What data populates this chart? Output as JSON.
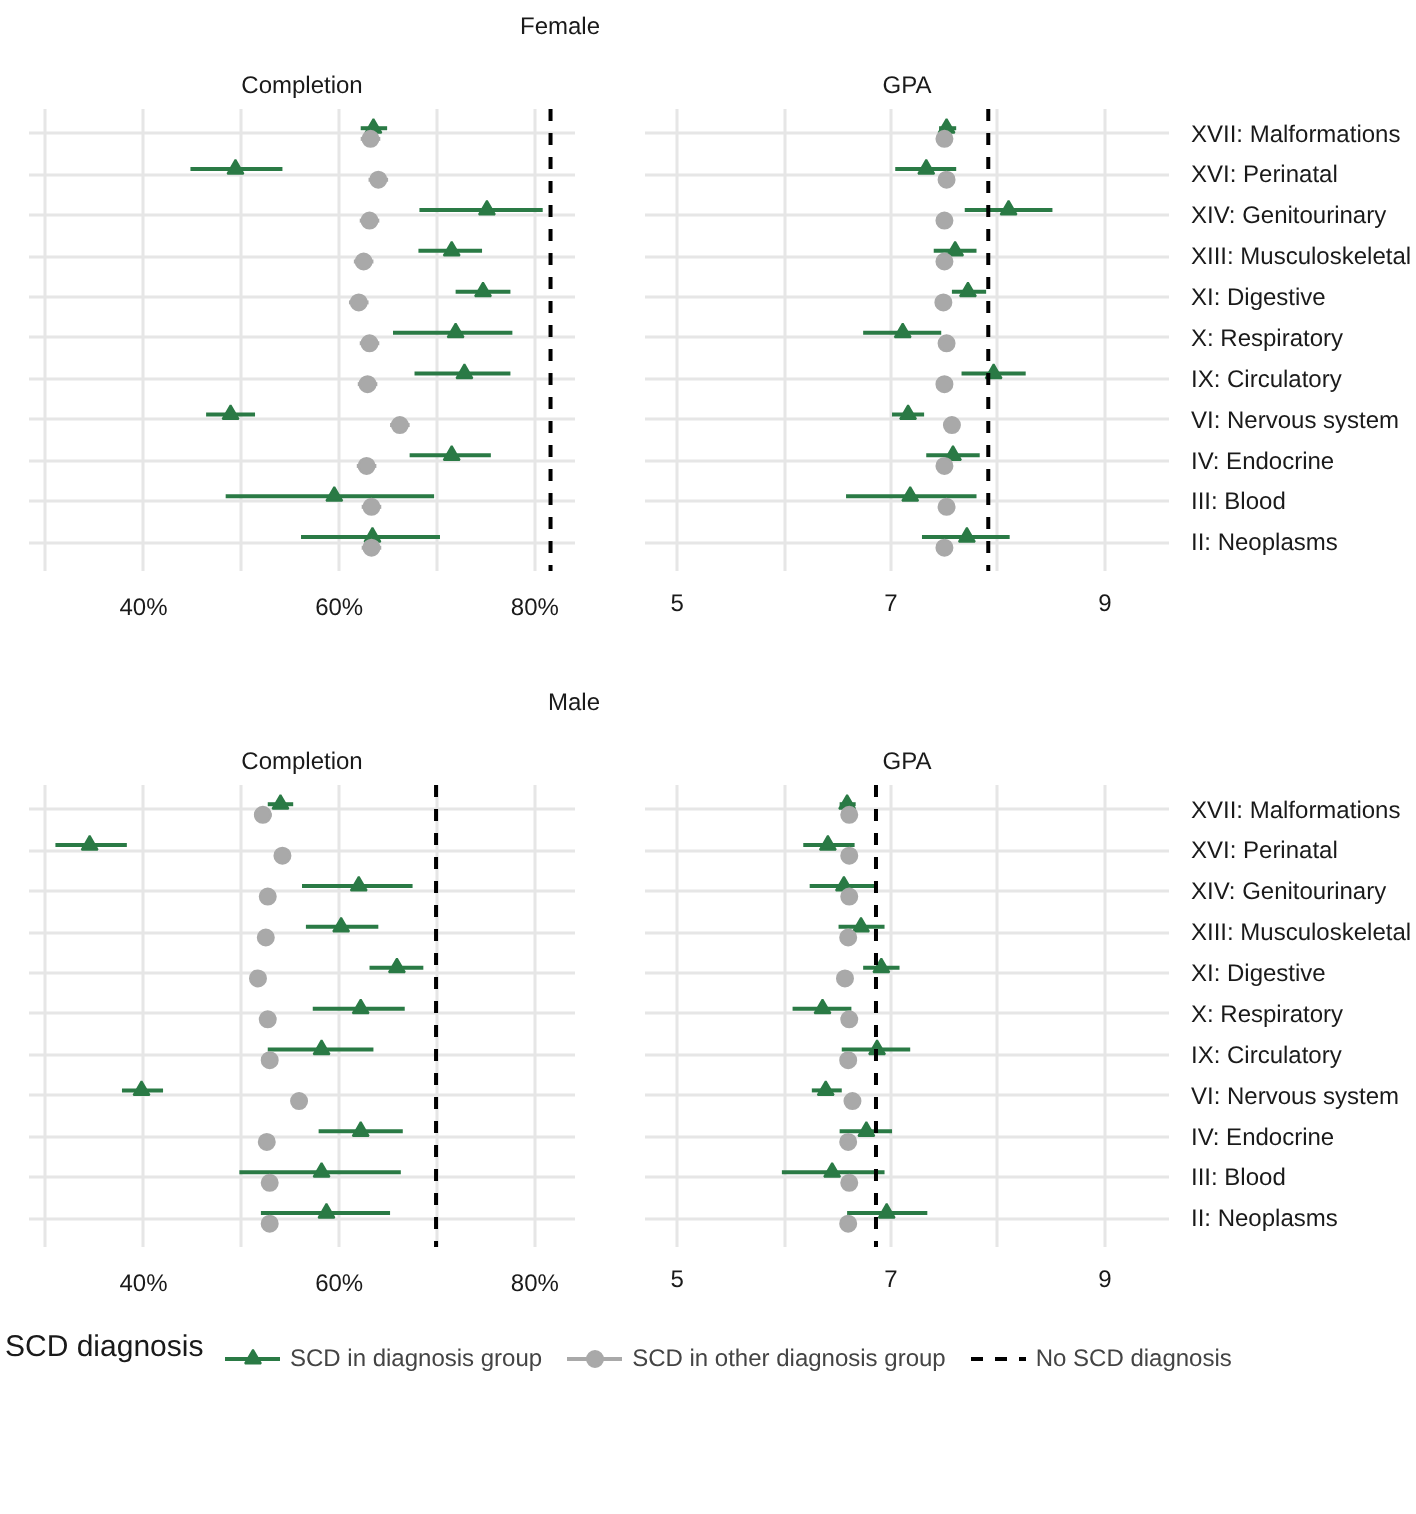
{
  "chart_data": [
    {
      "type": "scatter",
      "orientation": "horizontal",
      "title": "Female",
      "subtitle": "Completion",
      "tick_labels": "x",
      "grid": true,
      "categories": [
        null,
        null,
        null,
        null,
        null,
        null,
        null,
        null,
        null,
        null,
        null
      ],
      "xlim": [
        28.3,
        84.1
      ],
      "xticks": [
        {
          "value": 30,
          "label": null
        },
        {
          "value": 40,
          "label": "40%"
        },
        {
          "value": 50,
          "label": null
        },
        {
          "value": 60,
          "label": "60%"
        },
        {
          "value": 70,
          "label": null
        },
        {
          "value": 80,
          "label": "80%"
        }
      ],
      "series": [
        {
          "color": "#2a7a45",
          "marker": "triangle",
          "values": [
            63.5,
            49.4,
            75.1,
            71.5,
            74.7,
            71.9,
            72.8,
            48.9,
            71.5,
            59.5,
            63.4
          ],
          "errors": [
            [
              62.2,
              64.9
            ],
            [
              44.8,
              54.2
            ],
            [
              68.2,
              80.8
            ],
            [
              68.1,
              74.6
            ],
            [
              71.9,
              77.5
            ],
            [
              65.5,
              77.7
            ],
            [
              67.7,
              77.5
            ],
            [
              46.4,
              51.4
            ],
            [
              67.2,
              75.5
            ],
            [
              48.4,
              69.7
            ],
            [
              56.1,
              70.3
            ]
          ]
        },
        {
          "color": "#a9a9a9",
          "marker": "circle",
          "values": [
            63.2,
            64.0,
            63.1,
            62.5,
            62.0,
            63.1,
            62.9,
            66.2,
            62.8,
            63.3,
            63.3
          ],
          "errors": [
            [
              62.2,
              64.2
            ],
            [
              63.0,
              65.0
            ],
            [
              62.1,
              64.1
            ],
            [
              61.5,
              63.5
            ],
            [
              61.0,
              63.0
            ],
            [
              62.1,
              64.1
            ],
            [
              61.9,
              63.9
            ],
            [
              65.2,
              67.2
            ],
            [
              61.8,
              63.8
            ],
            [
              62.3,
              64.3
            ],
            [
              62.3,
              64.3
            ]
          ]
        }
      ],
      "ref_lines": [
        {
          "axis": "x",
          "value": 81.6,
          "color": "#000000",
          "line_style": "dashed"
        }
      ]
    },
    {
      "type": "scatter",
      "orientation": "horizontal",
      "subtitle": "GPA",
      "grid": true,
      "categories": [
        "XVII: Malformations",
        "XVI: Perinatal",
        "XIV: Genitourinary",
        "XIII: Musculoskeletal",
        "XI: Digestive",
        "X: Respiratory",
        "IX: Circulatory",
        "VI: Nervous system",
        "IV: Endocrine",
        "III: Blood",
        "II: Neoplasms"
      ],
      "xlim": [
        4.7,
        9.6
      ],
      "xticks": [
        5,
        {
          "value": 6,
          "label": null
        },
        7,
        {
          "value": 8,
          "label": null
        },
        9
      ],
      "series": [
        {
          "color": "#2a7a45",
          "marker": "triangle",
          "values": [
            7.52,
            7.33,
            8.1,
            7.6,
            7.72,
            7.11,
            7.96,
            7.16,
            7.58,
            7.18,
            7.71
          ],
          "errors": [
            [
              7.45,
              7.61
            ],
            [
              7.04,
              7.61
            ],
            [
              7.69,
              8.51
            ],
            [
              7.4,
              7.8
            ],
            [
              7.57,
              7.89
            ],
            [
              6.74,
              7.47
            ],
            [
              7.66,
              8.26
            ],
            [
              7.01,
              7.31
            ],
            [
              7.33,
              7.83
            ],
            [
              6.58,
              7.8
            ],
            [
              7.29,
              8.11
            ]
          ]
        },
        {
          "color": "#a9a9a9",
          "marker": "circle",
          "values": [
            7.5,
            7.52,
            7.5,
            7.5,
            7.49,
            7.52,
            7.5,
            7.57,
            7.5,
            7.52,
            7.5
          ],
          "errors": [
            [
              7.45,
              7.55
            ],
            [
              7.47,
              7.57
            ],
            [
              7.45,
              7.55
            ],
            [
              7.45,
              7.55
            ],
            [
              7.44,
              7.54
            ],
            [
              7.47,
              7.57
            ],
            [
              7.45,
              7.55
            ],
            [
              7.52,
              7.62
            ],
            [
              7.45,
              7.55
            ],
            [
              7.47,
              7.57
            ],
            [
              7.45,
              7.55
            ]
          ]
        }
      ],
      "ref_lines": [
        {
          "axis": "x",
          "value": 7.91,
          "color": "#000000",
          "line_style": "dashed"
        }
      ]
    },
    {
      "type": "scatter",
      "orientation": "horizontal",
      "title": "Male",
      "subtitle": "Completion",
      "tick_labels": "x",
      "grid": true,
      "categories": [
        null,
        null,
        null,
        null,
        null,
        null,
        null,
        null,
        null,
        null,
        null
      ],
      "xlim": [
        28.3,
        84.1
      ],
      "xticks": [
        {
          "value": 30,
          "label": null
        },
        {
          "value": 40,
          "label": "40%"
        },
        {
          "value": 50,
          "label": null
        },
        {
          "value": 60,
          "label": "60%"
        },
        {
          "value": 70,
          "label": null
        },
        {
          "value": 80,
          "label": "80%"
        }
      ],
      "series": [
        {
          "color": "#2a7a45",
          "marker": "triangle",
          "values": [
            54.0,
            34.5,
            62.0,
            60.2,
            65.9,
            62.2,
            58.2,
            39.8,
            62.2,
            58.2,
            58.7
          ],
          "errors": [
            [
              52.7,
              55.3
            ],
            [
              31.0,
              38.3
            ],
            [
              56.2,
              67.5
            ],
            [
              56.6,
              64.0
            ],
            [
              63.1,
              68.6
            ],
            [
              57.3,
              66.7
            ],
            [
              52.7,
              63.5
            ],
            [
              37.8,
              42.0
            ],
            [
              57.9,
              66.5
            ],
            [
              49.8,
              66.3
            ],
            [
              52.0,
              65.2
            ]
          ]
        },
        {
          "color": "#a9a9a9",
          "marker": "circle",
          "values": [
            52.2,
            54.2,
            52.7,
            52.5,
            51.7,
            52.7,
            52.9,
            55.9,
            52.6,
            52.9,
            52.9
          ],
          "errors": [
            [
              51.3,
              53.1
            ],
            [
              53.4,
              55.0
            ],
            [
              51.9,
              53.5
            ],
            [
              51.7,
              53.3
            ],
            [
              50.9,
              52.5
            ],
            [
              51.9,
              53.5
            ],
            [
              52.1,
              53.7
            ],
            [
              55.1,
              56.7
            ],
            [
              51.8,
              53.4
            ],
            [
              52.1,
              53.7
            ],
            [
              52.1,
              53.7
            ]
          ]
        }
      ],
      "ref_lines": [
        {
          "axis": "x",
          "value": 69.9,
          "color": "#000000",
          "line_style": "dashed"
        }
      ]
    },
    {
      "type": "scatter",
      "orientation": "horizontal",
      "subtitle": "GPA",
      "grid": true,
      "legend": "bottom",
      "legend_title": "SCD diagnosis",
      "categories": [
        "XVII: Malformations",
        "XVI: Perinatal",
        "XIV: Genitourinary",
        "XIII: Musculoskeletal",
        "XI: Digestive",
        "X: Respiratory",
        "IX: Circulatory",
        "VI: Nervous system",
        "IV: Endocrine",
        "III: Blood",
        "II: Neoplasms"
      ],
      "xlim": [
        4.7,
        9.6
      ],
      "xticks": [
        5,
        {
          "value": 6,
          "label": null
        },
        7,
        {
          "value": 8,
          "label": null
        },
        9
      ],
      "series": [
        {
          "name": "SCD in diagnosis group",
          "color": "#2a7a45",
          "marker": "triangle",
          "values": [
            6.59,
            6.41,
            6.56,
            6.72,
            6.91,
            6.36,
            6.87,
            6.39,
            6.77,
            6.45,
            6.96
          ],
          "errors": [
            [
              6.52,
              6.67
            ],
            [
              6.18,
              6.66
            ],
            [
              6.24,
              6.86
            ],
            [
              6.51,
              6.94
            ],
            [
              6.74,
              7.08
            ],
            [
              6.08,
              6.63
            ],
            [
              6.54,
              7.18
            ],
            [
              6.26,
              6.54
            ],
            [
              6.52,
              7.01
            ],
            [
              5.98,
              6.94
            ],
            [
              6.59,
              7.34
            ]
          ]
        },
        {
          "name": "SCD in other diagnosis group",
          "color": "#a9a9a9",
          "marker": "circle",
          "values": [
            6.61,
            6.61,
            6.61,
            6.6,
            6.57,
            6.61,
            6.6,
            6.64,
            6.6,
            6.61,
            6.6
          ],
          "errors": [
            [
              6.57,
              6.65
            ],
            [
              6.57,
              6.65
            ],
            [
              6.57,
              6.65
            ],
            [
              6.56,
              6.64
            ],
            [
              6.53,
              6.61
            ],
            [
              6.57,
              6.65
            ],
            [
              6.56,
              6.64
            ],
            [
              6.6,
              6.68
            ],
            [
              6.56,
              6.64
            ],
            [
              6.57,
              6.65
            ],
            [
              6.56,
              6.64
            ]
          ]
        }
      ],
      "ref_lines": [
        {
          "axis": "x",
          "value": 6.86,
          "label": "No SCD diagnosis",
          "color": "#000000",
          "line_style": "dashed"
        }
      ]
    }
  ]
}
